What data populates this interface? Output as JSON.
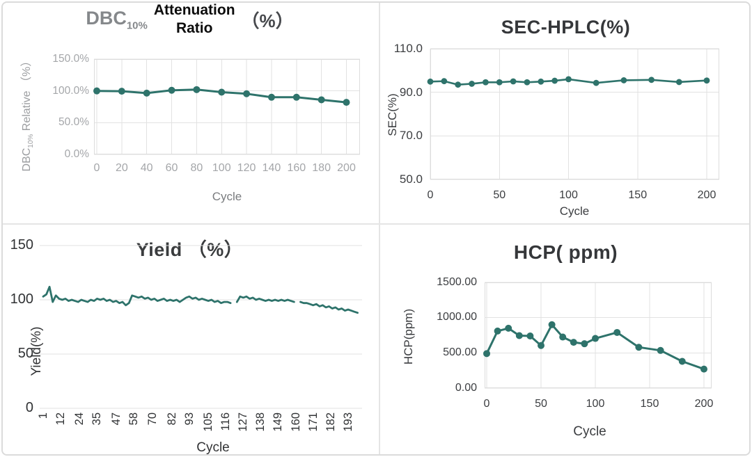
{
  "figure": {
    "description": "2x2 panel of resin cycling study line charts",
    "series_color": "#2e736b",
    "grid_color": "#e2e2e2",
    "border_color": "#dcdcdc"
  },
  "chart_data": [
    {
      "id": "dbc10-attenuation-ratio",
      "type": "line",
      "title_text": "DBC10% Attenuation Ratio （%）",
      "title_parts": {
        "prefix": "DBC",
        "sub": "10%",
        "overlay_line1": "Attenuation",
        "overlay_line2": "Ratio",
        "suffix": "（%）"
      },
      "xlabel": "Cycle",
      "ylabel_parts": {
        "prefix": "DBC",
        "sub": "10%",
        "rest": " Relative （%）"
      },
      "x": [
        0,
        20,
        40,
        60,
        80,
        100,
        120,
        140,
        160,
        180,
        200
      ],
      "y": [
        100,
        99.5,
        96.5,
        101,
        102,
        98,
        95.5,
        90,
        90,
        86,
        82
      ],
      "xticks": {
        "values": [
          0,
          20,
          40,
          60,
          80,
          100,
          120,
          140,
          160,
          180,
          200
        ],
        "labels": [
          "0",
          "20",
          "40",
          "60",
          "80",
          "100",
          "120",
          "140",
          "160",
          "180",
          "200"
        ]
      },
      "yticks": {
        "values": [
          0,
          50,
          100,
          150
        ],
        "labels": [
          "0.0%",
          "50.0%",
          "100.0%",
          "150.0%"
        ]
      },
      "xlim": [
        0,
        200
      ],
      "ylim": [
        0,
        150
      ],
      "grid": {
        "horizontal": true,
        "vertical": true
      },
      "marker": true,
      "legend": "none"
    },
    {
      "id": "sec-hplc",
      "type": "line",
      "title_text": "SEC-HPLC(%)",
      "xlabel": "Cycle",
      "ylabel": "SEC(%)",
      "x": [
        0,
        10,
        20,
        30,
        40,
        50,
        60,
        70,
        80,
        90,
        100,
        120,
        140,
        160,
        180,
        200
      ],
      "y": [
        94.9,
        95.1,
        93.5,
        93.9,
        94.6,
        94.6,
        95.0,
        94.6,
        94.9,
        95.3,
        96.0,
        94.3,
        95.5,
        95.7,
        94.7,
        95.4
      ],
      "xticks": {
        "values": [
          0,
          50,
          100,
          150,
          200
        ],
        "labels": [
          "0",
          "50",
          "100",
          "150",
          "200"
        ]
      },
      "yticks": {
        "values": [
          50,
          70,
          90,
          110
        ],
        "labels": [
          "50.0",
          "70.0",
          "90.0",
          "110.0"
        ]
      },
      "xlim": [
        0,
        200
      ],
      "ylim": [
        50,
        110
      ],
      "grid": {
        "horizontal": true,
        "vertical": true
      },
      "marker": true,
      "legend": "none"
    },
    {
      "id": "yield",
      "type": "line",
      "title_text": "Yield （%）",
      "xlabel": "Cycle",
      "ylabel": "Yield(%)",
      "x": [
        1,
        3,
        5,
        7,
        9,
        11,
        13,
        15,
        17,
        19,
        21,
        23,
        25,
        27,
        29,
        31,
        33,
        35,
        37,
        39,
        41,
        43,
        45,
        47,
        49,
        51,
        53,
        55,
        57,
        59,
        61,
        63,
        65,
        67,
        69,
        71,
        73,
        75,
        77,
        79,
        81,
        83,
        85,
        87,
        89,
        91,
        93,
        95,
        97,
        99,
        101,
        103,
        105,
        107,
        109,
        111,
        113,
        115,
        117,
        119,
        121,
        123,
        125,
        127,
        129,
        131,
        133,
        135,
        137,
        139,
        141,
        143,
        145,
        147,
        149,
        151,
        153,
        155,
        157,
        159,
        161,
        163,
        165,
        167,
        169,
        171,
        173,
        175,
        177,
        179,
        181,
        183,
        185,
        187,
        189,
        191,
        193,
        195,
        197,
        199
      ],
      "y": [
        103,
        105,
        112,
        98,
        104,
        101,
        100,
        101,
        99,
        100,
        99,
        98,
        100,
        99,
        98,
        100,
        99,
        101,
        100,
        101,
        99,
        100,
        98,
        99,
        97,
        98,
        95,
        97,
        104,
        103,
        102,
        103,
        101,
        102,
        100,
        101,
        99,
        100,
        101,
        99,
        100,
        99,
        100,
        98,
        100,
        102,
        103,
        101,
        102,
        100,
        101,
        100,
        99,
        100,
        98,
        99,
        97,
        98,
        98,
        97,
        null,
        98,
        103,
        102,
        103,
        101,
        102,
        100,
        101,
        100,
        99,
        100,
        99,
        100,
        99,
        100,
        99,
        100,
        99,
        98,
        null,
        98,
        97,
        97,
        96,
        95,
        96,
        94,
        95,
        93,
        94,
        92,
        93,
        91,
        92,
        90,
        91,
        90,
        89,
        88
      ],
      "xticks": {
        "values": [
          1,
          12,
          24,
          35,
          47,
          58,
          70,
          82,
          93,
          105,
          116,
          127,
          138,
          149,
          160,
          171,
          182,
          193
        ],
        "labels": [
          "1",
          "12",
          "24",
          "35",
          "47",
          "58",
          "70",
          "82",
          "93",
          "105",
          "116",
          "127",
          "138",
          "149",
          "160",
          "171",
          "182",
          "193"
        ],
        "rotated": true
      },
      "yticks": {
        "values": [
          0,
          50,
          100,
          150
        ],
        "labels": [
          "0",
          "50",
          "100",
          "150"
        ]
      },
      "xlim": [
        1,
        199
      ],
      "ylim": [
        0,
        150
      ],
      "grid": {
        "horizontal": true,
        "vertical": false
      },
      "marker": false,
      "legend": "none"
    },
    {
      "id": "hcp",
      "type": "line",
      "title_text": "HCP( ppm)",
      "xlabel": "Cycle",
      "ylabel": "HCP(ppm)",
      "x": [
        0,
        10,
        20,
        30,
        40,
        50,
        60,
        70,
        80,
        90,
        100,
        120,
        140,
        160,
        180,
        200
      ],
      "y": [
        490,
        810,
        850,
        745,
        740,
        605,
        900,
        725,
        650,
        630,
        705,
        790,
        580,
        535,
        380,
        270
      ],
      "xticks": {
        "values": [
          0,
          50,
          100,
          150,
          200
        ],
        "labels": [
          "0",
          "50",
          "100",
          "150",
          "200"
        ]
      },
      "yticks": {
        "values": [
          0,
          500,
          1000,
          1500
        ],
        "labels": [
          "0.00",
          "500.00",
          "1000.00",
          "1500.00"
        ]
      },
      "xlim": [
        0,
        200
      ],
      "ylim": [
        0,
        1500
      ],
      "grid": {
        "horizontal": true,
        "vertical": true
      },
      "marker": true,
      "legend": "none"
    }
  ]
}
